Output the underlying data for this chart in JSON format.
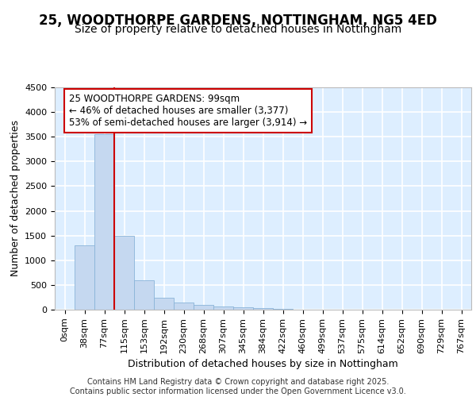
{
  "title_line1": "25, WOODTHORPE GARDENS, NOTTINGHAM, NG5 4ED",
  "title_line2": "Size of property relative to detached houses in Nottingham",
  "xlabel": "Distribution of detached houses by size in Nottingham",
  "ylabel": "Number of detached properties",
  "categories": [
    "0sqm",
    "38sqm",
    "77sqm",
    "115sqm",
    "153sqm",
    "192sqm",
    "230sqm",
    "268sqm",
    "307sqm",
    "345sqm",
    "384sqm",
    "422sqm",
    "460sqm",
    "499sqm",
    "537sqm",
    "575sqm",
    "614sqm",
    "652sqm",
    "690sqm",
    "729sqm",
    "767sqm"
  ],
  "values": [
    0,
    1300,
    3550,
    1490,
    590,
    240,
    140,
    90,
    70,
    50,
    30,
    15,
    5,
    0,
    0,
    0,
    0,
    0,
    0,
    0,
    0
  ],
  "bar_color": "#c5d8f0",
  "bar_edge_color": "#8ab4d8",
  "background_color": "#ddeeff",
  "grid_color": "#ffffff",
  "vline_color": "#cc0000",
  "annotation_box_text": "25 WOODTHORPE GARDENS: 99sqm\n← 46% of detached houses are smaller (3,377)\n53% of semi-detached houses are larger (3,914) →",
  "annotation_box_color": "#cc0000",
  "annotation_box_bg": "#ffffff",
  "ylim": [
    0,
    4500
  ],
  "yticks": [
    0,
    500,
    1000,
    1500,
    2000,
    2500,
    3000,
    3500,
    4000,
    4500
  ],
  "footer_text": "Contains HM Land Registry data © Crown copyright and database right 2025.\nContains public sector information licensed under the Open Government Licence v3.0.",
  "title_fontsize": 12,
  "subtitle_fontsize": 10,
  "tick_fontsize": 8,
  "label_fontsize": 9,
  "footer_fontsize": 7
}
